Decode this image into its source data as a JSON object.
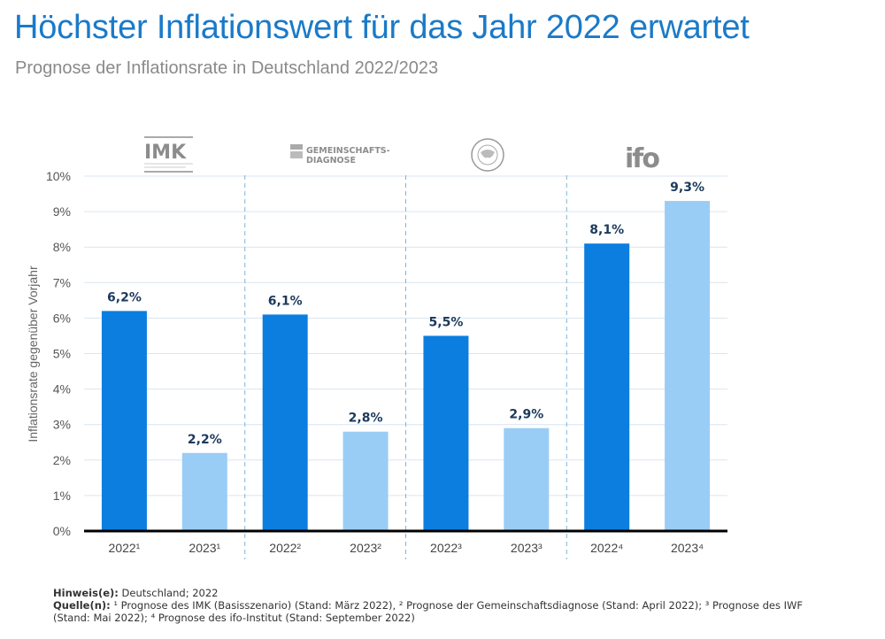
{
  "header": {
    "title": "Höchster Inflationswert für das Jahr 2022 erwartet",
    "subtitle": "Prognose der Inflationsrate in Deutschland 2022/2023"
  },
  "logos": [
    {
      "name": "imk-logo",
      "text": "IMK"
    },
    {
      "name": "gemeinschaftsdiagnose-logo",
      "text_line1": "GEMEINSCHAFTS-",
      "text_line2": "DIAGNOSE"
    },
    {
      "name": "iwf-logo",
      "text": "INTERNATIONAL MONETARY FUND"
    },
    {
      "name": "ifo-logo",
      "text": "ifo"
    }
  ],
  "colors": {
    "bar_2022": "#0b7ee0",
    "bar_2023": "#99cdf6",
    "value_label": "#1b3a5c",
    "title": "#1a7ac9"
  },
  "chart_data": {
    "type": "bar",
    "title": "Höchster Inflationswert für das Jahr 2022 erwartet",
    "subtitle": "Prognose der Inflationsrate in Deutschland 2022/2023",
    "xlabel": "",
    "ylabel": "Inflationsrate gegenüber Vorjahr",
    "ylim": [
      0,
      10
    ],
    "yticks": [
      0,
      1,
      2,
      3,
      4,
      5,
      6,
      7,
      8,
      9,
      10
    ],
    "ytick_labels": [
      "0%",
      "1%",
      "2%",
      "3%",
      "4%",
      "5%",
      "6%",
      "7%",
      "8%",
      "9%",
      "10%"
    ],
    "grid": true,
    "groups": [
      "IMK",
      "Gemeinschaftsdiagnose",
      "IWF",
      "ifo"
    ],
    "categories": [
      "2022¹",
      "2023¹",
      "2022²",
      "2023²",
      "2022³",
      "2023³",
      "2022⁴",
      "2023⁴"
    ],
    "values": [
      6.2,
      2.2,
      6.1,
      2.8,
      5.5,
      2.9,
      8.1,
      9.3
    ],
    "value_labels": [
      "6,2%",
      "2,2%",
      "6,1%",
      "2,8%",
      "5,5%",
      "2,9%",
      "8,1%",
      "9,3%"
    ],
    "bar_series": [
      "2022",
      "2023",
      "2022",
      "2023",
      "2022",
      "2023",
      "2022",
      "2023"
    ]
  },
  "footer": {
    "note_label": "Hinweis(e):",
    "note_text": " Deutschland; 2022",
    "source_label": "Quelle(n):",
    "source_text": " ¹ Prognose des IMK (Basisszenario) (Stand: März 2022), ² Prognose der Gemeinschaftsdiagnose (Stand: April 2022); ³ Prognose des IWF (Stand: Mai 2022); ⁴ Prognose des ifo-Institut (Stand: September 2022)"
  }
}
